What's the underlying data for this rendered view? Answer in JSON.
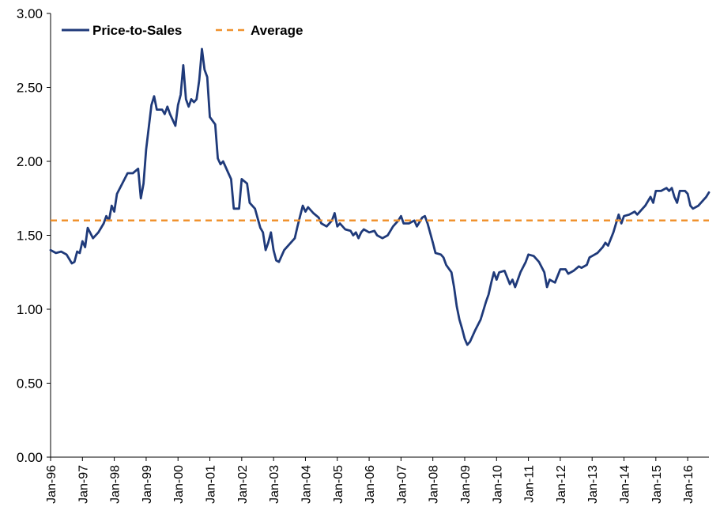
{
  "chart_data": {
    "type": "line",
    "title": "",
    "xlabel": "",
    "ylabel": "",
    "ylim": [
      0,
      3
    ],
    "y_ticks": [
      "0.00",
      "0.50",
      "1.00",
      "1.50",
      "2.00",
      "2.50",
      "3.00"
    ],
    "x_ticks": [
      "Jan-96",
      "Jan-97",
      "Jan-98",
      "Jan-99",
      "Jan-00",
      "Jan-01",
      "Jan-02",
      "Jan-03",
      "Jan-04",
      "Jan-05",
      "Jan-06",
      "Jan-07",
      "Jan-08",
      "Jan-09",
      "Jan-10",
      "Jan-11",
      "Jan-12",
      "Jan-13",
      "Jan-14",
      "Jan-15",
      "Jan-16"
    ],
    "grid": false,
    "legend_position": "top-left",
    "series": [
      {
        "name": "Price-to-Sales",
        "color": "#1f3a7a",
        "style": "solid",
        "points": [
          [
            "1996-01",
            1.4
          ],
          [
            "1996-03",
            1.38
          ],
          [
            "1996-05",
            1.39
          ],
          [
            "1996-07",
            1.37
          ],
          [
            "1996-09",
            1.31
          ],
          [
            "1996-10",
            1.32
          ],
          [
            "1996-11",
            1.39
          ],
          [
            "1996-12",
            1.38
          ],
          [
            "1997-01",
            1.46
          ],
          [
            "1997-02",
            1.42
          ],
          [
            "1997-03",
            1.55
          ],
          [
            "1997-05",
            1.48
          ],
          [
            "1997-07",
            1.52
          ],
          [
            "1997-09",
            1.58
          ],
          [
            "1997-10",
            1.63
          ],
          [
            "1997-11",
            1.6
          ],
          [
            "1997-12",
            1.7
          ],
          [
            "1998-01",
            1.66
          ],
          [
            "1998-02",
            1.78
          ],
          [
            "1998-04",
            1.85
          ],
          [
            "1998-06",
            1.92
          ],
          [
            "1998-08",
            1.92
          ],
          [
            "1998-10",
            1.95
          ],
          [
            "1998-11",
            1.75
          ],
          [
            "1998-12",
            1.85
          ],
          [
            "1999-01",
            2.08
          ],
          [
            "1999-03",
            2.38
          ],
          [
            "1999-04",
            2.44
          ],
          [
            "1999-05",
            2.35
          ],
          [
            "1999-07",
            2.35
          ],
          [
            "1999-08",
            2.32
          ],
          [
            "1999-09",
            2.37
          ],
          [
            "1999-10",
            2.32
          ],
          [
            "1999-12",
            2.24
          ],
          [
            "2000-01",
            2.38
          ],
          [
            "2000-02",
            2.45
          ],
          [
            "2000-03",
            2.65
          ],
          [
            "2000-04",
            2.42
          ],
          [
            "2000-05",
            2.37
          ],
          [
            "2000-06",
            2.42
          ],
          [
            "2000-07",
            2.4
          ],
          [
            "2000-08",
            2.42
          ],
          [
            "2000-09",
            2.55
          ],
          [
            "2000-10",
            2.76
          ],
          [
            "2000-11",
            2.62
          ],
          [
            "2000-12",
            2.57
          ],
          [
            "2001-01",
            2.3
          ],
          [
            "2001-03",
            2.25
          ],
          [
            "2001-04",
            2.02
          ],
          [
            "2001-05",
            1.98
          ],
          [
            "2001-06",
            2.0
          ],
          [
            "2001-08",
            1.92
          ],
          [
            "2001-09",
            1.88
          ],
          [
            "2001-10",
            1.68
          ],
          [
            "2001-12",
            1.68
          ],
          [
            "2002-01",
            1.88
          ],
          [
            "2002-03",
            1.85
          ],
          [
            "2002-04",
            1.72
          ],
          [
            "2002-06",
            1.68
          ],
          [
            "2002-08",
            1.55
          ],
          [
            "2002-09",
            1.52
          ],
          [
            "2002-10",
            1.4
          ],
          [
            "2002-11",
            1.45
          ],
          [
            "2002-12",
            1.52
          ],
          [
            "2003-01",
            1.4
          ],
          [
            "2003-02",
            1.33
          ],
          [
            "2003-03",
            1.32
          ],
          [
            "2003-05",
            1.4
          ],
          [
            "2003-07",
            1.44
          ],
          [
            "2003-09",
            1.48
          ],
          [
            "2003-10",
            1.56
          ],
          [
            "2003-11",
            1.63
          ],
          [
            "2003-12",
            1.7
          ],
          [
            "2004-01",
            1.66
          ],
          [
            "2004-02",
            1.69
          ],
          [
            "2004-04",
            1.65
          ],
          [
            "2004-06",
            1.62
          ],
          [
            "2004-07",
            1.58
          ],
          [
            "2004-09",
            1.56
          ],
          [
            "2004-11",
            1.6
          ],
          [
            "2004-12",
            1.65
          ],
          [
            "2005-01",
            1.56
          ],
          [
            "2005-02",
            1.58
          ],
          [
            "2005-04",
            1.54
          ],
          [
            "2005-06",
            1.53
          ],
          [
            "2005-07",
            1.5
          ],
          [
            "2005-08",
            1.52
          ],
          [
            "2005-09",
            1.48
          ],
          [
            "2005-10",
            1.52
          ],
          [
            "2005-11",
            1.54
          ],
          [
            "2006-01",
            1.52
          ],
          [
            "2006-03",
            1.53
          ],
          [
            "2006-04",
            1.5
          ],
          [
            "2006-06",
            1.48
          ],
          [
            "2006-08",
            1.5
          ],
          [
            "2006-10",
            1.56
          ],
          [
            "2006-12",
            1.6
          ],
          [
            "2007-01",
            1.63
          ],
          [
            "2007-02",
            1.58
          ],
          [
            "2007-04",
            1.58
          ],
          [
            "2007-06",
            1.6
          ],
          [
            "2007-07",
            1.56
          ],
          [
            "2007-09",
            1.62
          ],
          [
            "2007-10",
            1.63
          ],
          [
            "2007-11",
            1.58
          ],
          [
            "2008-01",
            1.45
          ],
          [
            "2008-02",
            1.38
          ],
          [
            "2008-04",
            1.37
          ],
          [
            "2008-05",
            1.35
          ],
          [
            "2008-06",
            1.3
          ],
          [
            "2008-08",
            1.25
          ],
          [
            "2008-09",
            1.15
          ],
          [
            "2008-10",
            1.02
          ],
          [
            "2008-11",
            0.93
          ],
          [
            "2008-12",
            0.87
          ],
          [
            "2009-01",
            0.8
          ],
          [
            "2009-02",
            0.76
          ],
          [
            "2009-03",
            0.78
          ],
          [
            "2009-05",
            0.86
          ],
          [
            "2009-07",
            0.93
          ],
          [
            "2009-09",
            1.05
          ],
          [
            "2009-10",
            1.1
          ],
          [
            "2009-11",
            1.18
          ],
          [
            "2009-12",
            1.25
          ],
          [
            "2010-01",
            1.2
          ],
          [
            "2010-02",
            1.25
          ],
          [
            "2010-04",
            1.26
          ],
          [
            "2010-06",
            1.17
          ],
          [
            "2010-07",
            1.2
          ],
          [
            "2010-08",
            1.15
          ],
          [
            "2010-09",
            1.2
          ],
          [
            "2010-10",
            1.25
          ],
          [
            "2010-12",
            1.32
          ],
          [
            "2011-01",
            1.37
          ],
          [
            "2011-03",
            1.36
          ],
          [
            "2011-05",
            1.32
          ],
          [
            "2011-07",
            1.25
          ],
          [
            "2011-08",
            1.15
          ],
          [
            "2011-09",
            1.2
          ],
          [
            "2011-11",
            1.18
          ],
          [
            "2012-01",
            1.27
          ],
          [
            "2012-03",
            1.27
          ],
          [
            "2012-04",
            1.24
          ],
          [
            "2012-06",
            1.26
          ],
          [
            "2012-08",
            1.29
          ],
          [
            "2012-09",
            1.28
          ],
          [
            "2012-11",
            1.3
          ],
          [
            "2012-12",
            1.35
          ],
          [
            "2013-01",
            1.36
          ],
          [
            "2013-03",
            1.38
          ],
          [
            "2013-05",
            1.42
          ],
          [
            "2013-06",
            1.45
          ],
          [
            "2013-07",
            1.43
          ],
          [
            "2013-09",
            1.52
          ],
          [
            "2013-11",
            1.64
          ],
          [
            "2013-12",
            1.58
          ],
          [
            "2014-01",
            1.63
          ],
          [
            "2014-03",
            1.64
          ],
          [
            "2014-05",
            1.66
          ],
          [
            "2014-06",
            1.64
          ],
          [
            "2014-08",
            1.68
          ],
          [
            "2014-09",
            1.7
          ],
          [
            "2014-11",
            1.76
          ],
          [
            "2014-12",
            1.72
          ],
          [
            "2015-01",
            1.8
          ],
          [
            "2015-03",
            1.8
          ],
          [
            "2015-05",
            1.82
          ],
          [
            "2015-06",
            1.8
          ],
          [
            "2015-07",
            1.82
          ],
          [
            "2015-08",
            1.76
          ],
          [
            "2015-09",
            1.72
          ],
          [
            "2015-10",
            1.8
          ],
          [
            "2015-12",
            1.8
          ],
          [
            "2016-01",
            1.78
          ],
          [
            "2016-02",
            1.7
          ],
          [
            "2016-03",
            1.68
          ],
          [
            "2016-05",
            1.7
          ],
          [
            "2016-07",
            1.74
          ],
          [
            "2016-08",
            1.76
          ],
          [
            "2016-09",
            1.79
          ]
        ]
      },
      {
        "name": "Average",
        "color": "#f0922e",
        "style": "dashed",
        "points": [
          [
            "1996-01",
            1.6
          ],
          [
            "2016-09",
            1.6
          ]
        ]
      }
    ]
  }
}
